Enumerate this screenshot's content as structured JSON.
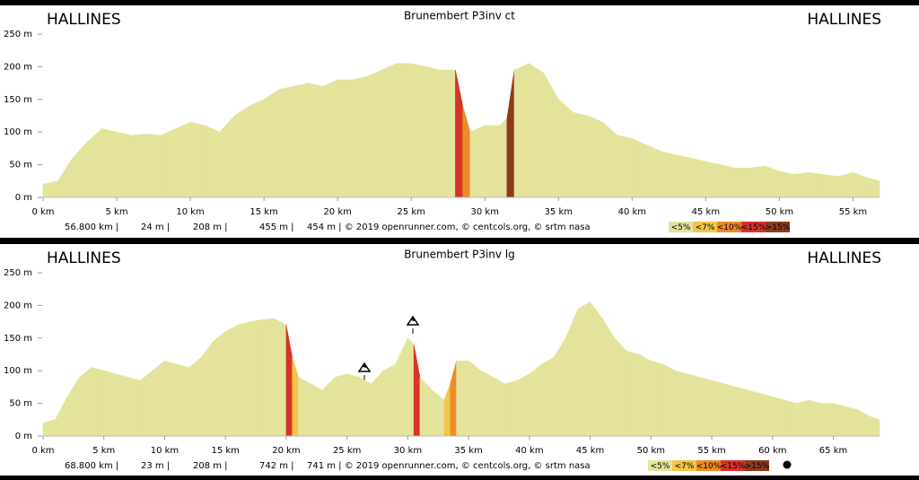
{
  "chart_data": [
    {
      "type": "area",
      "title": "Brunembert P3inv ct",
      "start_label": "HALLINES",
      "end_label": "HALLINES",
      "x": [
        0,
        1,
        2,
        3,
        4,
        5,
        6,
        7,
        8,
        9,
        10,
        11,
        12,
        13,
        14,
        15,
        16,
        17,
        18,
        19,
        20,
        21,
        22,
        23,
        24,
        25,
        26,
        27,
        28,
        28.5,
        29,
        30,
        31,
        31.5,
        32,
        33,
        34,
        35,
        36,
        37,
        38,
        39,
        40,
        41,
        42,
        43,
        44,
        45,
        46,
        47,
        48,
        49,
        50,
        51,
        52,
        53,
        54,
        55,
        56,
        56.8
      ],
      "values": [
        20,
        25,
        60,
        85,
        105,
        100,
        95,
        97,
        95,
        105,
        115,
        110,
        100,
        125,
        140,
        150,
        165,
        170,
        175,
        170,
        180,
        180,
        185,
        195,
        205,
        205,
        200,
        195,
        195,
        140,
        100,
        110,
        110,
        120,
        195,
        205,
        190,
        150,
        130,
        125,
        115,
        95,
        90,
        80,
        70,
        65,
        60,
        55,
        50,
        45,
        45,
        48,
        40,
        35,
        38,
        35,
        32,
        38,
        30,
        25
      ],
      "xlim": [
        0,
        56.8
      ],
      "ylim": [
        0,
        250
      ],
      "xticks": [
        {
          "value": 0,
          "label": "0 km"
        },
        {
          "value": 5,
          "label": "5 km"
        },
        {
          "value": 10,
          "label": "10 km"
        },
        {
          "value": 15,
          "label": "15 km"
        },
        {
          "value": 20,
          "label": "20 km"
        },
        {
          "value": 25,
          "label": "25 km"
        },
        {
          "value": 30,
          "label": "30 km"
        },
        {
          "value": 35,
          "label": "35 km"
        },
        {
          "value": 40,
          "label": "40 km"
        },
        {
          "value": 45,
          "label": "45 km"
        },
        {
          "value": 50,
          "label": "50 km"
        },
        {
          "value": 55,
          "label": "55 km"
        }
      ],
      "yticks": [
        {
          "value": 0,
          "label": "0 m"
        },
        {
          "value": 50,
          "label": "50 m"
        },
        {
          "value": 100,
          "label": "100 m"
        },
        {
          "value": 150,
          "label": "150 m"
        },
        {
          "value": 200,
          "label": "200 m"
        },
        {
          "value": 250,
          "label": "250 m"
        }
      ],
      "stats": [
        "56.800 km |",
        "24 m |",
        "208 m |",
        "455 m |",
        "454 m | © 2019 openrunner.com, © centcols.org, © srtm nasa"
      ],
      "legend": [
        {
          "label": "<5%",
          "threshold": 5,
          "color": "#e4e39b"
        },
        {
          "label": "<7%",
          "threshold": 7,
          "color": "#f2c64a"
        },
        {
          "label": "<10%",
          "threshold": 10,
          "color": "#ee8a2a"
        },
        {
          "label": "<15%",
          "threshold": 15,
          "color": "#d7332a"
        },
        {
          "label": ">15%",
          "threshold": 15,
          "color": "#8e3b1c"
        }
      ]
    },
    {
      "type": "area",
      "title": "Brunembert P3inv lg",
      "start_label": "HALLINES",
      "end_label": "HALLINES",
      "x": [
        0,
        1,
        2,
        3,
        4,
        5,
        6,
        7,
        8,
        9,
        10,
        11,
        12,
        13,
        14,
        15,
        16,
        17,
        18,
        19,
        20,
        20.5,
        21,
        22,
        23,
        24,
        25,
        26,
        27,
        28,
        29,
        30,
        30.5,
        31,
        32,
        33,
        33.5,
        34,
        35,
        36,
        37,
        38,
        39,
        40,
        41,
        42,
        43,
        44,
        45,
        46,
        47,
        48,
        49,
        50,
        51,
        52,
        53,
        54,
        55,
        56,
        57,
        58,
        59,
        60,
        61,
        62,
        63,
        64,
        65,
        66,
        67,
        68,
        68.8
      ],
      "values": [
        20,
        25,
        60,
        90,
        105,
        100,
        95,
        90,
        85,
        100,
        115,
        110,
        105,
        120,
        145,
        160,
        170,
        175,
        178,
        180,
        170,
        120,
        90,
        80,
        70,
        90,
        95,
        90,
        80,
        100,
        110,
        150,
        140,
        90,
        70,
        55,
        80,
        115,
        115,
        100,
        90,
        80,
        85,
        95,
        110,
        120,
        150,
        195,
        205,
        180,
        150,
        130,
        125,
        115,
        110,
        100,
        95,
        90,
        85,
        80,
        75,
        70,
        65,
        60,
        55,
        50,
        55,
        50,
        50,
        45,
        40,
        30,
        25
      ],
      "xlim": [
        0,
        68.8
      ],
      "ylim": [
        0,
        250
      ],
      "xticks": [
        {
          "value": 0,
          "label": "0 km"
        },
        {
          "value": 5,
          "label": "5 km"
        },
        {
          "value": 10,
          "label": "10 km"
        },
        {
          "value": 15,
          "label": "15 km"
        },
        {
          "value": 20,
          "label": "20 km"
        },
        {
          "value": 25,
          "label": "25 km"
        },
        {
          "value": 30,
          "label": "30 km"
        },
        {
          "value": 35,
          "label": "35 km"
        },
        {
          "value": 40,
          "label": "40 km"
        },
        {
          "value": 45,
          "label": "45 km"
        },
        {
          "value": 50,
          "label": "50 km"
        },
        {
          "value": 55,
          "label": "55 km"
        },
        {
          "value": 60,
          "label": "60 km"
        },
        {
          "value": 65,
          "label": "65 km"
        }
      ],
      "yticks": [
        {
          "value": 0,
          "label": "0 m"
        },
        {
          "value": 50,
          "label": "50 m"
        },
        {
          "value": 100,
          "label": "100 m"
        },
        {
          "value": 150,
          "label": "150 m"
        },
        {
          "value": 200,
          "label": "200 m"
        },
        {
          "value": 250,
          "label": "250 m"
        }
      ],
      "stats": [
        "68.800 km |",
        "23 m |",
        "208 m |",
        "742 m |",
        "741 m | © 2019 openrunner.com, © centcols.org, © srtm nasa"
      ],
      "legend": [
        {
          "label": "<5%",
          "threshold": 5,
          "color": "#e4e39b"
        },
        {
          "label": "<7%",
          "threshold": 7,
          "color": "#f2c64a"
        },
        {
          "label": "<10%",
          "threshold": 10,
          "color": "#ee8a2a"
        },
        {
          "label": "<15%",
          "threshold": 15,
          "color": "#d7332a"
        },
        {
          "label": ">15%",
          "threshold": 15,
          "color": "#8e3b1c"
        }
      ]
    }
  ]
}
